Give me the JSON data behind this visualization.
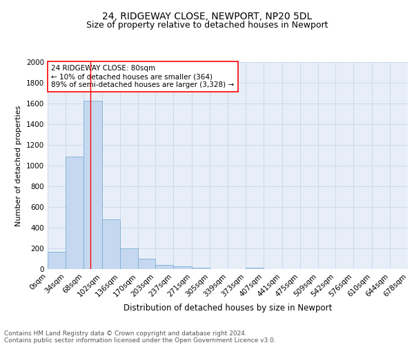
{
  "title": "24, RIDGEWAY CLOSE, NEWPORT, NP20 5DL",
  "subtitle": "Size of property relative to detached houses in Newport",
  "xlabel": "Distribution of detached houses by size in Newport",
  "ylabel": "Number of detached properties",
  "footnote1": "Contains HM Land Registry data © Crown copyright and database right 2024.",
  "footnote2": "Contains public sector information licensed under the Open Government Licence v3.0.",
  "annotation_line1": "24 RIDGEWAY CLOSE: 80sqm",
  "annotation_line2": "← 10% of detached houses are smaller (364)",
  "annotation_line3": "89% of semi-detached houses are larger (3,328) →",
  "bin_edges": [
    0,
    34,
    68,
    102,
    136,
    170,
    203,
    237,
    271,
    305,
    339,
    373,
    407,
    441,
    475,
    509,
    542,
    576,
    610,
    644,
    678
  ],
  "bar_heights": [
    165,
    1085,
    1625,
    480,
    200,
    100,
    40,
    25,
    15,
    0,
    0,
    15,
    0,
    0,
    0,
    0,
    0,
    0,
    0,
    0
  ],
  "bar_color": "#c5d8f0",
  "bar_edge_color": "#7aadd4",
  "grid_color": "#ccd8ec",
  "bg_color": "#e8eef8",
  "red_line_x": 80,
  "ylim_max": 2000,
  "yticks": [
    0,
    200,
    400,
    600,
    800,
    1000,
    1200,
    1400,
    1600,
    1800,
    2000
  ],
  "title_fontsize": 10,
  "subtitle_fontsize": 9,
  "xlabel_fontsize": 8.5,
  "ylabel_fontsize": 8,
  "tick_fontsize": 7.5,
  "annotation_fontsize": 7.5,
  "footnote_fontsize": 6.5
}
